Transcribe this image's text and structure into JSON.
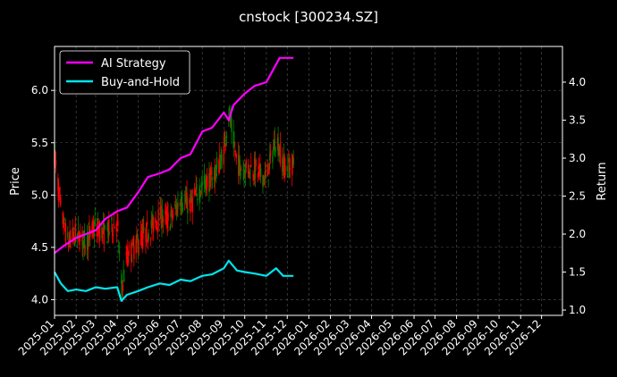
{
  "chart_data": {
    "type": "line",
    "title": "cnstock [300234.SZ]",
    "xlabel": "",
    "ylabel_left": "Price",
    "ylabel_right": "Return",
    "x_ticks": [
      "2025-01",
      "2025-02",
      "2025-03",
      "2025-04",
      "2025-05",
      "2025-06",
      "2025-07",
      "2025-08",
      "2025-09",
      "2025-10",
      "2025-11",
      "2025-12",
      "2026-01",
      "2026-02",
      "2026-03",
      "2026-04",
      "2026-05",
      "2026-06",
      "2026-07",
      "2026-08",
      "2026-09",
      "2026-10",
      "2026-11",
      "2026-12"
    ],
    "x_range": [
      "2025-01-01",
      "2026-12-31"
    ],
    "ylim_left": [
      3.85,
      6.42
    ],
    "ylim_right": [
      0.93,
      4.47
    ],
    "y_ticks_left": [
      "4.0",
      "4.5",
      "5.0",
      "5.5",
      "6.0"
    ],
    "y_ticks_right": [
      "1.0",
      "1.5",
      "2.0",
      "2.5",
      "3.0",
      "3.5",
      "4.0"
    ],
    "grid": true,
    "legend_position": "upper-left",
    "colors": {
      "up_candle": "#008000",
      "down_candle": "#ff0000",
      "ai_strategy": "#ff00ff",
      "buy_and_hold": "#00e5ee"
    },
    "series": [
      {
        "name": "AI Strategy",
        "axis": "right",
        "x": [
          "2025-01-01",
          "2025-01-15",
          "2025-02-01",
          "2025-02-15",
          "2025-03-01",
          "2025-03-15",
          "2025-04-01",
          "2025-04-15",
          "2025-05-01",
          "2025-05-15",
          "2025-06-01",
          "2025-06-15",
          "2025-07-01",
          "2025-07-15",
          "2025-08-01",
          "2025-08-15",
          "2025-09-01",
          "2025-09-08",
          "2025-09-15",
          "2025-10-01",
          "2025-10-15",
          "2025-11-01",
          "2025-11-10",
          "2025-11-20",
          "2025-12-01",
          "2025-12-10"
        ],
        "values": [
          1.75,
          1.85,
          1.95,
          2.0,
          2.05,
          2.2,
          2.3,
          2.35,
          2.55,
          2.75,
          2.8,
          2.85,
          3.0,
          3.05,
          3.35,
          3.4,
          3.6,
          3.5,
          3.7,
          3.85,
          3.95,
          4.0,
          4.15,
          4.32,
          4.32,
          4.32
        ]
      },
      {
        "name": "Buy-and-Hold",
        "axis": "right",
        "x": [
          "2025-01-01",
          "2025-01-10",
          "2025-01-20",
          "2025-02-01",
          "2025-02-15",
          "2025-03-01",
          "2025-03-15",
          "2025-04-01",
          "2025-04-07",
          "2025-04-15",
          "2025-05-01",
          "2025-05-15",
          "2025-06-01",
          "2025-06-15",
          "2025-07-01",
          "2025-07-15",
          "2025-08-01",
          "2025-08-15",
          "2025-09-01",
          "2025-09-08",
          "2025-09-20",
          "2025-10-01",
          "2025-10-15",
          "2025-11-01",
          "2025-11-15",
          "2025-11-25",
          "2025-12-01",
          "2025-12-10"
        ],
        "values": [
          1.5,
          1.35,
          1.25,
          1.27,
          1.25,
          1.3,
          1.28,
          1.3,
          1.12,
          1.2,
          1.25,
          1.3,
          1.35,
          1.33,
          1.4,
          1.38,
          1.45,
          1.47,
          1.55,
          1.65,
          1.52,
          1.5,
          1.48,
          1.45,
          1.55,
          1.45,
          1.45,
          1.45
        ]
      }
    ],
    "price": {
      "name": "Price",
      "axis": "left",
      "x": [
        "2025-01-01",
        "2025-01-10",
        "2025-01-20",
        "2025-02-01",
        "2025-02-15",
        "2025-03-01",
        "2025-03-15",
        "2025-04-01",
        "2025-04-07",
        "2025-04-15",
        "2025-05-01",
        "2025-05-15",
        "2025-06-01",
        "2025-06-15",
        "2025-07-01",
        "2025-07-15",
        "2025-08-01",
        "2025-08-15",
        "2025-09-01",
        "2025-09-08",
        "2025-09-20",
        "2025-10-01",
        "2025-10-15",
        "2025-11-01",
        "2025-11-15",
        "2025-11-25",
        "2025-12-01",
        "2025-12-10"
      ],
      "values": [
        5.4,
        4.85,
        4.55,
        4.62,
        4.55,
        4.7,
        4.62,
        4.75,
        4.1,
        4.4,
        4.55,
        4.65,
        4.8,
        4.75,
        4.95,
        4.9,
        5.1,
        5.15,
        5.4,
        5.8,
        5.3,
        5.25,
        5.25,
        5.15,
        5.55,
        5.3,
        5.25,
        5.3
      ]
    }
  }
}
